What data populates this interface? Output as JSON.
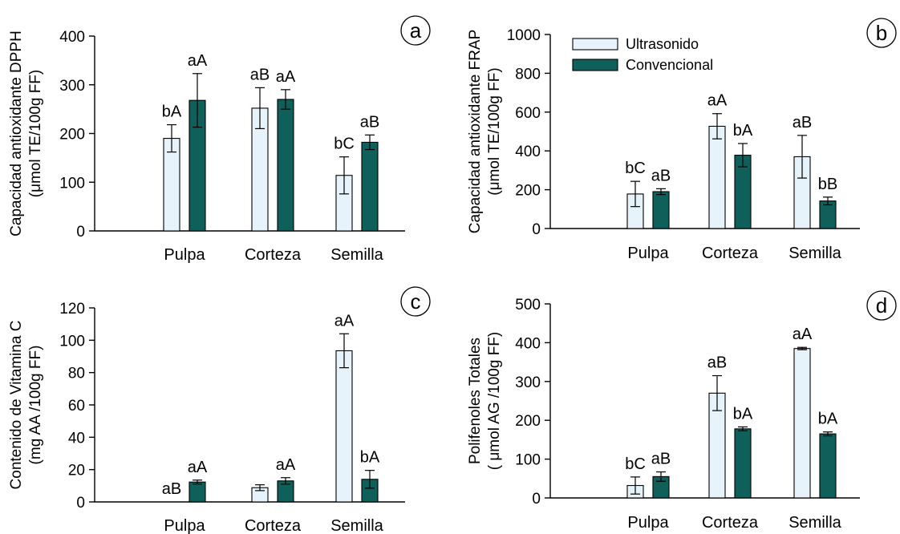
{
  "legend": {
    "series": [
      {
        "name": "Ultrasonido",
        "color": "#e6f3fb"
      },
      {
        "name": "Convencional",
        "color": "#0f5f5a"
      }
    ]
  },
  "chart_data": [
    {
      "type": "bar",
      "panel_label": "a",
      "ylabel_line1": "Capacidad antioxidante DPPH",
      "ylabel_line2": "(μmol TE/100g FF)",
      "ylim": [
        0,
        400
      ],
      "yticks": [
        0,
        100,
        200,
        300,
        400
      ],
      "categories": [
        "Pulpa",
        "Corteza",
        "Semilla"
      ],
      "series": [
        {
          "name": "Ultrasonido",
          "values": [
            190,
            252,
            114
          ],
          "errors": [
            28,
            42,
            38
          ],
          "labels": [
            "bA",
            "aB",
            "bC"
          ]
        },
        {
          "name": "Convencional",
          "values": [
            268,
            270,
            182
          ],
          "errors": [
            55,
            20,
            15
          ],
          "labels": [
            "aA",
            "aA",
            "aB"
          ]
        }
      ]
    },
    {
      "type": "bar",
      "panel_label": "b",
      "ylabel_line1": "Capacidad antioxidante FRAP",
      "ylabel_line2": "(μmol TE/100g FF)",
      "ylim": [
        0,
        1000
      ],
      "yticks": [
        0,
        200,
        400,
        600,
        800,
        1000
      ],
      "categories": [
        "Pulpa",
        "Corteza",
        "Semilla"
      ],
      "series": [
        {
          "name": "Ultrasonido",
          "values": [
            178,
            527,
            370
          ],
          "errors": [
            65,
            65,
            110
          ],
          "labels": [
            "bC",
            "aA",
            "aB"
          ]
        },
        {
          "name": "Convencional",
          "values": [
            190,
            378,
            142
          ],
          "errors": [
            15,
            60,
            20
          ],
          "labels": [
            "aB",
            "bA",
            "bB"
          ]
        }
      ]
    },
    {
      "type": "bar",
      "panel_label": "c",
      "ylabel_line1": "Contenido de Vitamina C",
      "ylabel_line2": "(mg AA /100g FF)",
      "ylim": [
        0,
        120
      ],
      "yticks": [
        0,
        20,
        40,
        60,
        80,
        100,
        120
      ],
      "categories": [
        "Pulpa",
        "Corteza",
        "Semilla"
      ],
      "series": [
        {
          "name": "Ultrasonido",
          "values": [
            0,
            8.8,
            93.5
          ],
          "errors": [
            0,
            1.8,
            10.5
          ],
          "labels": [
            "aB",
            "",
            "aA"
          ]
        },
        {
          "name": "Convencional",
          "values": [
            12.3,
            13.0,
            14.0
          ],
          "errors": [
            1.2,
            2.0,
            5.5
          ],
          "labels": [
            "aA",
            "aA",
            "bA"
          ]
        }
      ]
    },
    {
      "type": "bar",
      "panel_label": "d",
      "ylabel_line1": "Polifenoles Totales",
      "ylabel_line2": "( μmol  AG /100g FF)",
      "ylim": [
        0,
        500
      ],
      "yticks": [
        0,
        100,
        200,
        300,
        400,
        500
      ],
      "categories": [
        "Pulpa",
        "Corteza",
        "Semilla"
      ],
      "series": [
        {
          "name": "Ultrasonido",
          "values": [
            32,
            270,
            385
          ],
          "errors": [
            22,
            45,
            3
          ],
          "labels": [
            "bC",
            "aB",
            "aA"
          ]
        },
        {
          "name": "Convencional",
          "values": [
            55,
            178,
            165
          ],
          "errors": [
            12,
            5,
            5
          ],
          "labels": [
            "aB",
            "bA",
            "bA"
          ]
        }
      ]
    }
  ]
}
